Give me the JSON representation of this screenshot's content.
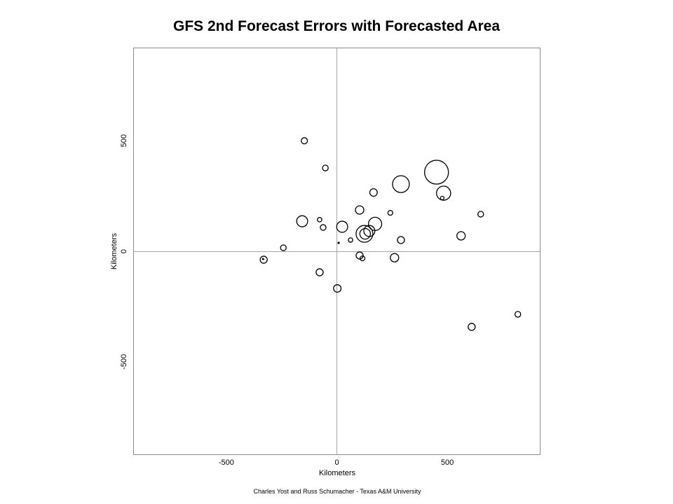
{
  "chart_data": {
    "type": "scatter",
    "title": "GFS 2nd Forecast Errors with Forecasted Area",
    "xlabel": "Kilometers",
    "ylabel": "Kilometers",
    "xlim": [
      -920,
      920
    ],
    "ylim": [
      -920,
      920
    ],
    "xticks": [
      -500,
      0,
      500
    ],
    "yticks": [
      -500,
      0,
      500
    ],
    "reference_lines": {
      "x": 0,
      "y": 0
    },
    "grid": false,
    "legend": "none",
    "points": [
      {
        "x": -147,
        "y": 500,
        "radius_km": 14
      },
      {
        "x": -52,
        "y": 377,
        "radius_km": 13
      },
      {
        "x": 166,
        "y": 266,
        "radius_km": 17
      },
      {
        "x": 290,
        "y": 304,
        "radius_km": 38
      },
      {
        "x": 451,
        "y": 358,
        "radius_km": 54
      },
      {
        "x": 483,
        "y": 263,
        "radius_km": 32
      },
      {
        "x": 477,
        "y": 241,
        "radius_km": 8
      },
      {
        "x": 651,
        "y": 168,
        "radius_km": 13
      },
      {
        "x": 242,
        "y": 174,
        "radius_km": 11
      },
      {
        "x": 103,
        "y": 187,
        "radius_km": 19
      },
      {
        "x": -78,
        "y": 143,
        "radius_km": 10
      },
      {
        "x": -157,
        "y": 136,
        "radius_km": 25
      },
      {
        "x": -62,
        "y": 108,
        "radius_km": 13
      },
      {
        "x": 24,
        "y": 111,
        "radius_km": 25
      },
      {
        "x": 173,
        "y": 124,
        "radius_km": 30
      },
      {
        "x": 147,
        "y": 92,
        "radius_km": 25
      },
      {
        "x": 125,
        "y": 79,
        "radius_km": 38
      },
      {
        "x": 128,
        "y": 79,
        "radius_km": 24
      },
      {
        "x": 62,
        "y": 51,
        "radius_km": 10
      },
      {
        "x": 8,
        "y": 38,
        "radius_km": 3
      },
      {
        "x": 290,
        "y": 51,
        "radius_km": 16
      },
      {
        "x": 562,
        "y": 70,
        "radius_km": 19
      },
      {
        "x": -242,
        "y": 16,
        "radius_km": 13
      },
      {
        "x": -331,
        "y": -38,
        "radius_km": 16
      },
      {
        "x": -334,
        "y": -35,
        "radius_km": 3
      },
      {
        "x": 103,
        "y": -19,
        "radius_km": 16
      },
      {
        "x": 116,
        "y": -32,
        "radius_km": 11
      },
      {
        "x": 261,
        "y": -29,
        "radius_km": 19
      },
      {
        "x": -78,
        "y": -95,
        "radius_km": 16
      },
      {
        "x": 2,
        "y": -168,
        "radius_km": 17
      },
      {
        "x": 610,
        "y": -342,
        "radius_km": 16
      },
      {
        "x": 819,
        "y": -285,
        "radius_km": 13
      }
    ]
  },
  "footer": {
    "credit": "Charles Yost and Russ Schumacher - Texas A&M University"
  },
  "colors": {
    "text": "#000000",
    "marker": "#000000",
    "frame": "#8c8c8c",
    "reference_line": "#a6a6a6",
    "background": "#ffffff"
  }
}
